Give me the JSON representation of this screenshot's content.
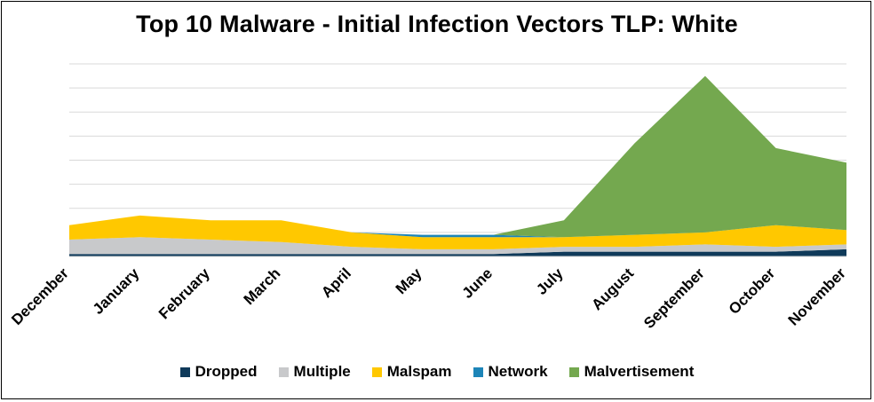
{
  "chart_data": {
    "type": "area",
    "stacked": true,
    "title": "Top 10 Malware - Initial Infection Vectors TLP: White",
    "categories": [
      "December",
      "January",
      "February",
      "March",
      "April",
      "May",
      "June",
      "July",
      "August",
      "September",
      "October",
      "November"
    ],
    "series": [
      {
        "name": "Dropped",
        "color": "#0f3a5a",
        "values": [
          1,
          1,
          1,
          1,
          1,
          1,
          1,
          2,
          2,
          2,
          2,
          3
        ]
      },
      {
        "name": "Multiple",
        "color": "#c8c9cb",
        "values": [
          6,
          7,
          6,
          5,
          3,
          2,
          2,
          2,
          2,
          3,
          2,
          2
        ]
      },
      {
        "name": "Malspam",
        "color": "#ffc800",
        "values": [
          6,
          9,
          8,
          9,
          6,
          5,
          5,
          4,
          5,
          5,
          9,
          6
        ]
      },
      {
        "name": "Network",
        "color": "#1d85b8",
        "values": [
          0,
          0,
          0,
          0,
          0,
          1,
          1,
          0,
          0,
          0,
          0,
          0
        ]
      },
      {
        "name": "Malvertisement",
        "color": "#74a84f",
        "values": [
          0,
          0,
          0,
          0,
          0,
          0,
          0,
          7,
          38,
          65,
          32,
          28
        ]
      }
    ],
    "ylim": [
      0,
      80
    ],
    "grid": true,
    "legend": "bottom"
  }
}
